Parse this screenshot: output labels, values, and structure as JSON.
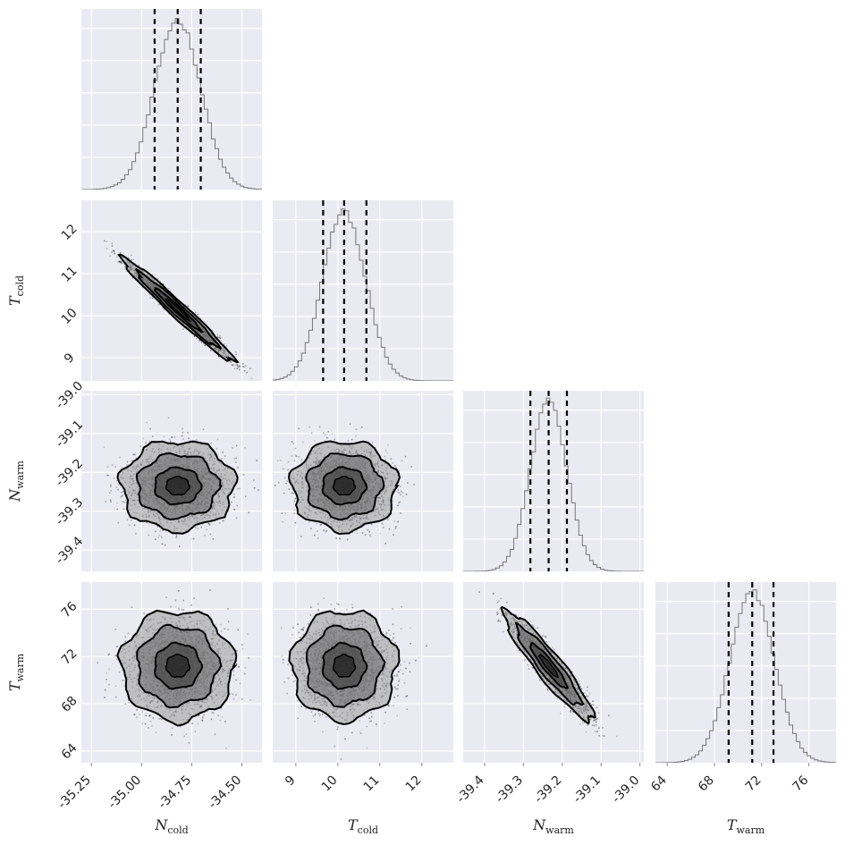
{
  "chart_data": {
    "type": "corner",
    "parameters": [
      {
        "symbol": "N",
        "subscript": "cold",
        "range": [
          -35.3,
          -34.4
        ],
        "ticks": [
          "-35.25",
          "-35.00",
          "-34.75",
          "-34.50"
        ],
        "tick_values": [
          -35.25,
          -35.0,
          -34.75,
          -34.5
        ],
        "quantiles": [
          -34.935,
          -34.82,
          -34.705
        ],
        "median": -34.82,
        "sigma": 0.115
      },
      {
        "symbol": "T",
        "subscript": "cold",
        "range": [
          8.45,
          12.75
        ],
        "ticks": [
          "9",
          "10",
          "11",
          "12"
        ],
        "tick_values": [
          9,
          10,
          11,
          12
        ],
        "quantiles": [
          9.65,
          10.15,
          10.68
        ],
        "median": 10.15,
        "sigma": 0.51
      },
      {
        "symbol": "N",
        "subscript": "warm",
        "range": [
          -39.455,
          -38.99
        ],
        "ticks": [
          "-39.4",
          "-39.3",
          "-39.2",
          "-39.1",
          "-39.0"
        ],
        "tick_values": [
          -39.4,
          -39.3,
          -39.2,
          -39.1,
          -39.0
        ],
        "quantiles": [
          -39.282,
          -39.235,
          -39.188
        ],
        "median": -39.235,
        "sigma": 0.047
      },
      {
        "symbol": "T",
        "subscript": "warm",
        "range": [
          63.0,
          78.3
        ],
        "ticks": [
          "64",
          "68",
          "72",
          "76"
        ],
        "tick_values": [
          64,
          68,
          72,
          76
        ],
        "quantiles": [
          69.2,
          71.2,
          73.0
        ],
        "median": 71.2,
        "sigma": 1.9
      }
    ],
    "correlations": {
      "0-1": -0.98,
      "2-3": -0.93,
      "0-2": 0.0,
      "0-3": 0.0,
      "1-2": 0.0,
      "1-3": 0.0
    },
    "histogram_style": "step",
    "quantile_lines": "dashed",
    "contours": true,
    "grid": true
  }
}
